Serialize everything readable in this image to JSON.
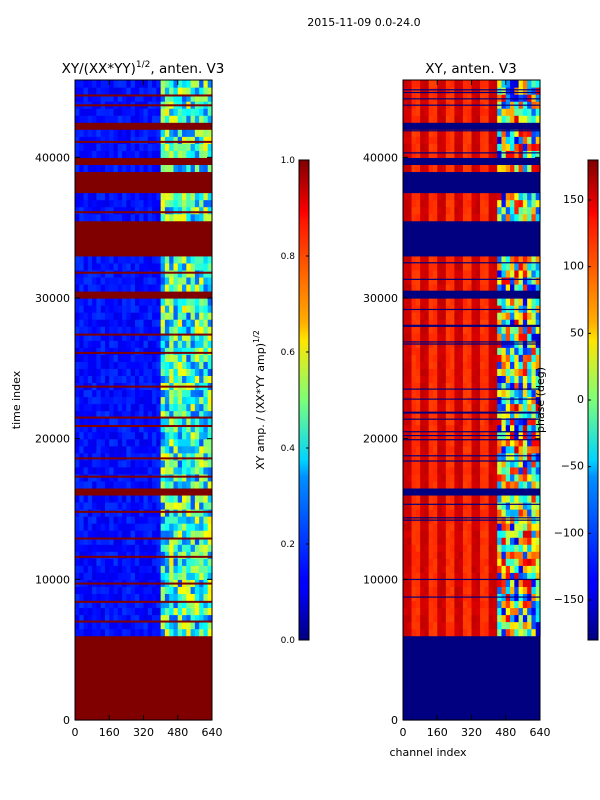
{
  "suptitle": "2015-11-09 0.0-24.0",
  "chart_data": [
    {
      "type": "heatmap",
      "title": "XY/(XX*YY)^1/2, anten. V3",
      "title_parts": {
        "main": "XY/(XX*YY)",
        "sup": "1/2",
        "tail": ", anten. V3"
      },
      "ylabel": "time index",
      "xlim": [
        0,
        640
      ],
      "ylim": [
        0,
        45500
      ],
      "xticks": [
        0,
        160,
        320,
        480,
        640
      ],
      "yticks": [
        0,
        10000,
        20000,
        30000,
        40000
      ],
      "colorbar": {
        "label": "XY amp. / (XX*YY amp)^1/2",
        "label_parts": {
          "main": "XY amp. / (XX*YY amp)",
          "sup": "1/2"
        },
        "range": [
          0.0,
          1.0
        ],
        "ticks": [
          "0.0",
          "0.2",
          "0.4",
          "0.6",
          "0.8",
          "1.0"
        ],
        "colormap": "jet"
      },
      "flagged_blocks": [
        [
          0,
          5800
        ],
        [
          15900,
          16500
        ],
        [
          29800,
          30600
        ],
        [
          33100,
          35300
        ],
        [
          37500,
          39000
        ],
        [
          39400,
          40000
        ],
        [
          42200,
          42600
        ]
      ],
      "flagged_lines": [
        1200,
        2400,
        3600,
        4600,
        7000,
        8400,
        9700,
        11600,
        12900,
        14800,
        17300,
        18600,
        20900,
        21500,
        23700,
        26100,
        27400,
        31800,
        36100,
        41100,
        43700,
        44400
      ],
      "bright_band_channels": [
        400,
        640
      ],
      "background_value": 0.1,
      "bright_value": 0.45
    },
    {
      "type": "heatmap",
      "title": "XY, anten. V3",
      "xlabel": "channel index",
      "xlim": [
        0,
        640
      ],
      "ylim": [
        0,
        45500
      ],
      "xticks": [
        0,
        160,
        320,
        480,
        640
      ],
      "yticks": [
        0,
        10000,
        20000,
        30000,
        40000
      ],
      "colorbar": {
        "label": "phase (deg)",
        "range": [
          -180,
          180
        ],
        "ticks": [
          "−150",
          "−100",
          "−50",
          "0",
          "50",
          "100",
          "150"
        ],
        "colormap": "jet"
      },
      "flagged_blocks": [
        [
          0,
          5800
        ],
        [
          15900,
          16500
        ],
        [
          29800,
          30600
        ],
        [
          33100,
          35300
        ],
        [
          37500,
          39000
        ],
        [
          39400,
          40000
        ],
        [
          42200,
          42600
        ]
      ],
      "flagged_value": -180,
      "stripe_period_channels": 80,
      "phase_base": 130,
      "phase_amplitude": 25
    }
  ]
}
